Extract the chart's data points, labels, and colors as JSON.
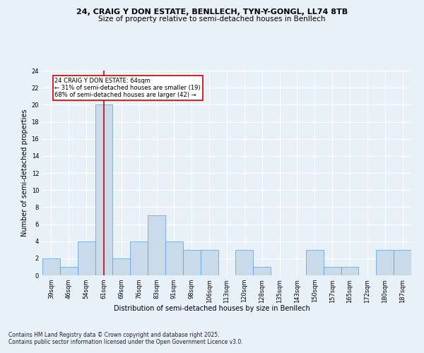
{
  "title_line1": "24, CRAIG Y DON ESTATE, BENLLECH, TYN-Y-GONGL, LL74 8TB",
  "title_line2": "Size of property relative to semi-detached houses in Benllech",
  "xlabel": "Distribution of semi-detached houses by size in Benllech",
  "ylabel": "Number of semi-detached properties",
  "categories": [
    "39sqm",
    "46sqm",
    "54sqm",
    "61sqm",
    "69sqm",
    "76sqm",
    "83sqm",
    "91sqm",
    "98sqm",
    "106sqm",
    "113sqm",
    "120sqm",
    "128sqm",
    "135sqm",
    "143sqm",
    "150sqm",
    "157sqm",
    "165sqm",
    "172sqm",
    "180sqm",
    "187sqm"
  ],
  "values": [
    2,
    1,
    4,
    20,
    2,
    4,
    7,
    4,
    3,
    3,
    0,
    3,
    1,
    0,
    0,
    3,
    1,
    1,
    0,
    3,
    3
  ],
  "bar_color": "#c9daea",
  "bar_edge_color": "#5b9bd5",
  "highlight_index": 3,
  "highlight_line_color": "#cc0000",
  "annotation_box_color": "#cc0000",
  "annotation_text_line1": "24 CRAIG Y DON ESTATE: 64sqm",
  "annotation_text_line2": "← 31% of semi-detached houses are smaller (19)",
  "annotation_text_line3": "68% of semi-detached houses are larger (42) →",
  "ylim": [
    0,
    24
  ],
  "yticks": [
    0,
    2,
    4,
    6,
    8,
    10,
    12,
    14,
    16,
    18,
    20,
    22,
    24
  ],
  "footer_line1": "Contains HM Land Registry data © Crown copyright and database right 2025.",
  "footer_line2": "Contains public sector information licensed under the Open Government Licence v3.0.",
  "background_color": "#e8f0f8",
  "plot_bg_color": "#e8f0f8",
  "grid_color": "#ffffff",
  "title_fontsize": 8,
  "subtitle_fontsize": 7.5,
  "axis_label_fontsize": 7,
  "tick_fontsize": 6,
  "annotation_fontsize": 6,
  "footer_fontsize": 5.5
}
